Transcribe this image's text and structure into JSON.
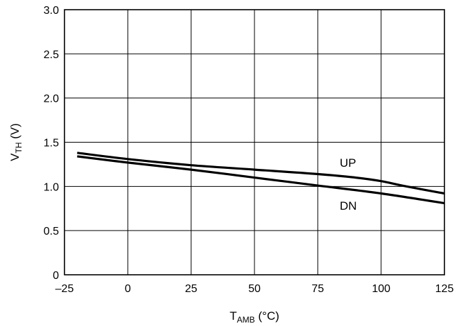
{
  "chart_data": {
    "type": "line",
    "xlabel": {
      "main": "T",
      "sub": "AMB",
      "unit": " (°C)"
    },
    "ylabel": {
      "main": "V",
      "sub": "TH",
      "unit": " (V)"
    },
    "xlim": [
      -25,
      125
    ],
    "ylim": [
      0,
      3.0
    ],
    "x_ticks": [
      -25,
      0,
      25,
      50,
      75,
      100,
      125
    ],
    "x_tick_labels": [
      "–25",
      "0",
      "25",
      "50",
      "75",
      "100",
      "125"
    ],
    "y_ticks": [
      0,
      0.5,
      1.0,
      1.5,
      2.0,
      2.5,
      3.0
    ],
    "y_tick_labels": [
      "0",
      "0.5",
      "1.0",
      "1.5",
      "2.0",
      "2.5",
      "3.0"
    ],
    "grid": true,
    "series": [
      {
        "name": "UP",
        "x": [
          -20,
          0,
          25,
          50,
          75,
          90,
          100,
          110,
          125
        ],
        "y": [
          1.38,
          1.31,
          1.24,
          1.19,
          1.14,
          1.1,
          1.06,
          1.0,
          0.92
        ]
      },
      {
        "name": "DN",
        "x": [
          -20,
          0,
          25,
          50,
          75,
          100,
          125
        ],
        "y": [
          1.34,
          1.27,
          1.19,
          1.1,
          1.01,
          0.92,
          0.81
        ]
      }
    ],
    "annotations": [
      {
        "text": "UP",
        "series": "UP"
      },
      {
        "text": "DN",
        "series": "DN"
      }
    ]
  }
}
